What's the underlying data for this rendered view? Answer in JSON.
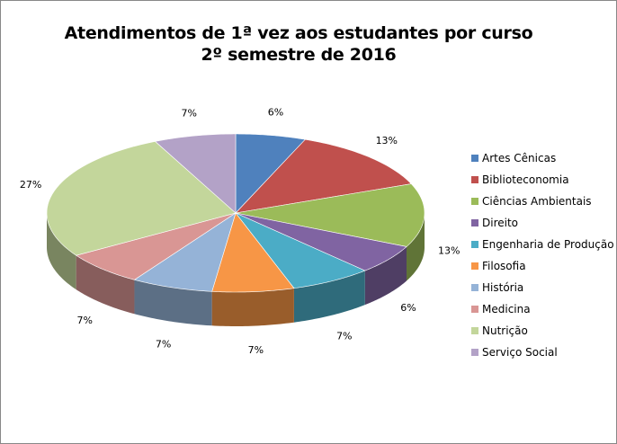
{
  "chart_data": {
    "type": "pie",
    "style": "3d",
    "title": "Atendimentos de 1ª vez aos estudantes por curso",
    "subtitle": "2º semestre de 2016",
    "categories": [
      "Artes Cênicas",
      "Biblioteconomia",
      "Ciências Ambientais",
      "Direito",
      "Engenharia de Produção",
      "Filosofia",
      "História",
      "Medicina",
      "Nutrição",
      "Serviço Social"
    ],
    "values": [
      6,
      13,
      13,
      6,
      7,
      7,
      7,
      7,
      27,
      7
    ],
    "labels": [
      "6%",
      "13%",
      "13%",
      "6%",
      "7%",
      "7%",
      "7%",
      "7%",
      "27%",
      "7%"
    ],
    "colors": [
      "#4F81BD",
      "#C0504D",
      "#9BBB59",
      "#8064A2",
      "#4BACC6",
      "#F79646",
      "#95B3D7",
      "#D99694",
      "#C3D69B",
      "#B3A2C7"
    ],
    "legend": "right"
  }
}
